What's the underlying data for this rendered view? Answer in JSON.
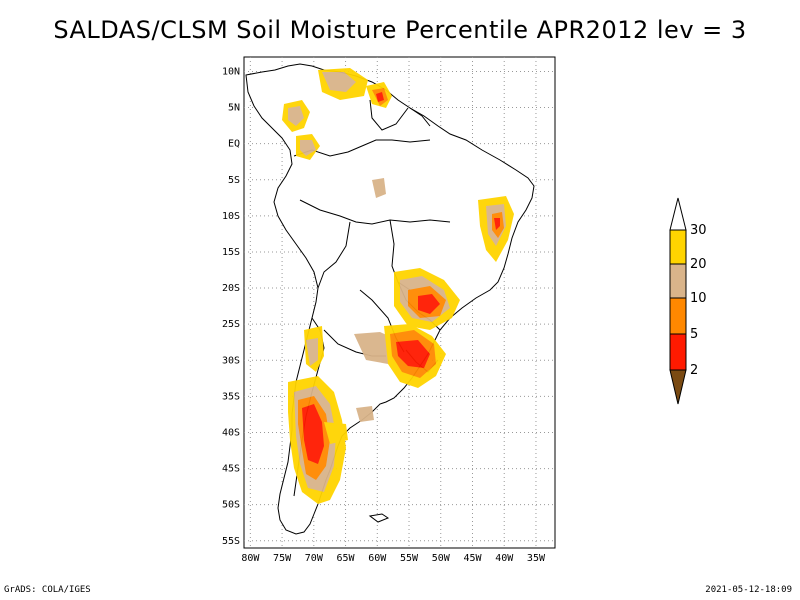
{
  "title": "SALDAS/CLSM Soil Moisture Percentile APR2012 lev = 3",
  "map": {
    "lat_range": [
      -56,
      12
    ],
    "lon_range": [
      -81,
      -32
    ],
    "lat_labels": [
      "10N",
      "5N",
      "EQ",
      "5S",
      "10S",
      "15S",
      "20S",
      "25S",
      "30S",
      "35S",
      "40S",
      "45S",
      "50S",
      "55S"
    ],
    "lat_values": [
      10,
      5,
      0,
      -5,
      -10,
      -15,
      -20,
      -25,
      -30,
      -35,
      -40,
      -45,
      -50,
      -55
    ],
    "lon_labels": [
      "80W",
      "75W",
      "70W",
      "65W",
      "60W",
      "55W",
      "50W",
      "45W",
      "40W",
      "35W"
    ],
    "lon_values": [
      -80,
      -75,
      -70,
      -65,
      -60,
      -55,
      -50,
      -45,
      -40,
      -35
    ]
  },
  "colorbar": {
    "levels": [
      "2",
      "5",
      "10",
      "20",
      "30"
    ],
    "colors": {
      "below_2": "#7a4a12",
      "2_5": "#ff1a00",
      "5_10": "#ff8800",
      "10_20": "#d9b48a",
      "20_30": "#ffd400",
      "above_30": "#ffffff"
    }
  },
  "footer": {
    "left": "GrADS: COLA/IGES",
    "right": "2021-05-12-18:09"
  }
}
